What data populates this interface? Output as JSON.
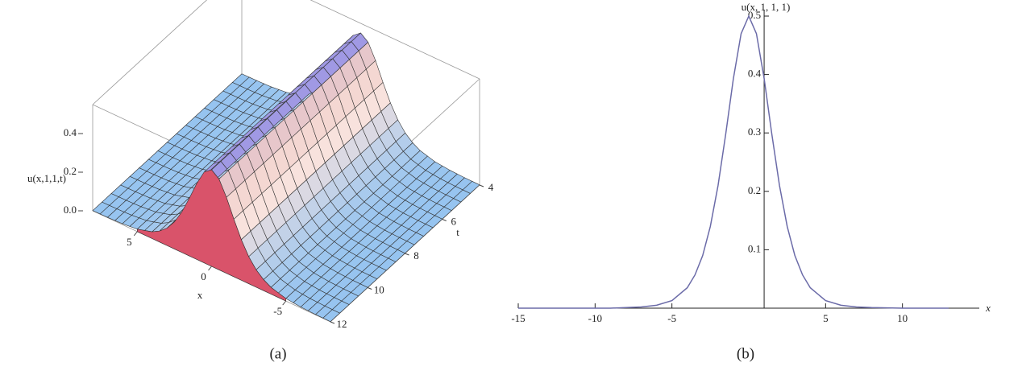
{
  "chart_data": [
    {
      "type": "surface",
      "caption": "(a)",
      "zlabel": "u(x,1,1,t)",
      "xlabel": "x",
      "tlabel": "t",
      "xlim": [
        -8,
        8
      ],
      "tlim": [
        4,
        12
      ],
      "zlim": [
        0,
        0.55
      ],
      "zticks": [
        {
          "value": 0,
          "label": "0.0"
        },
        0.2,
        0.4
      ],
      "xticks": [
        5,
        0,
        -5
      ],
      "tticks": [
        4,
        6,
        8,
        10,
        12
      ]
    },
    {
      "type": "line",
      "caption": "(b)",
      "ylabel": "u(x, 1, 1, 1)",
      "xlabel": "x",
      "color": "#6b6ba8",
      "x": [
        -15,
        -13,
        -11,
        -9,
        -8,
        -7,
        -6,
        -5,
        -4,
        -3.5,
        -3,
        -2.5,
        -2,
        -1.5,
        -1,
        -0.5,
        0,
        0.5,
        1,
        1.5,
        2,
        2.5,
        3,
        3.5,
        4,
        5,
        6,
        7,
        8,
        10,
        12,
        13
      ],
      "values": [
        0,
        0,
        0,
        0,
        0.001,
        0.002,
        0.005,
        0.013,
        0.035,
        0.057,
        0.09,
        0.14,
        0.21,
        0.298,
        0.393,
        0.47,
        0.5,
        0.47,
        0.393,
        0.298,
        0.21,
        0.14,
        0.09,
        0.057,
        0.035,
        0.013,
        0.005,
        0.002,
        0.001,
        0,
        0,
        0
      ],
      "xlim": [
        -15,
        15
      ],
      "ylim": [
        0,
        0.5
      ],
      "yaxis_at": 1,
      "xticks": [
        -15,
        -10,
        -5,
        5,
        10
      ],
      "yticks": [
        0.1,
        0.2,
        0.3,
        0.4,
        0.5
      ]
    }
  ]
}
